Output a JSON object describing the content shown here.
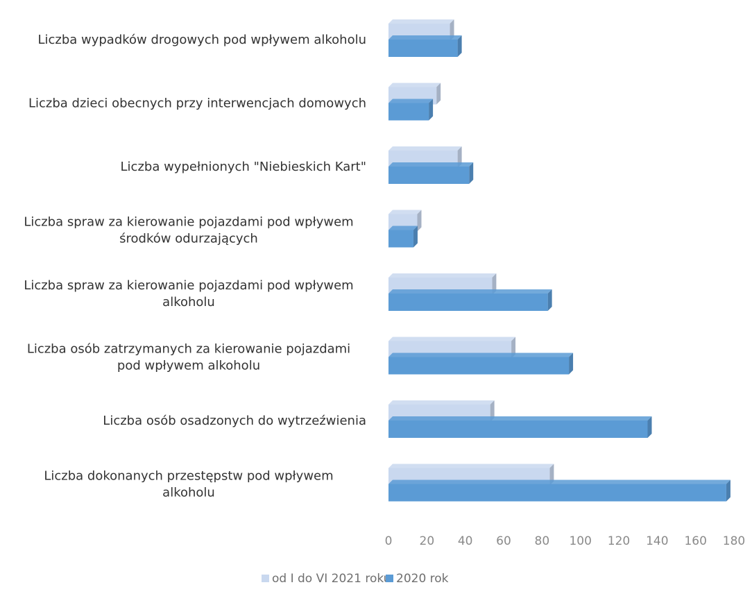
{
  "chart_data": {
    "type": "bar",
    "orientation": "horizontal",
    "categories": [
      [
        "Liczba wypadków drogowych pod wpływem alkoholu"
      ],
      [
        "Liczba dzieci obecnych przy interwencjach domowych"
      ],
      [
        "Liczba wypełnionych \"Niebieskich Kart\""
      ],
      [
        "Liczba spraw za kierowanie pojazdami pod wpływem",
        "środków odurzających"
      ],
      [
        "Liczba spraw za kierowanie pojazdami pod wpływem",
        "alkoholu"
      ],
      [
        "Liczba osób zatrzymanych za kierowanie pojazdami",
        "pod wpływem alkoholu"
      ],
      [
        "Liczba osób osadzonych do wytrzeźwienia"
      ],
      [
        "Liczba dokonanych przestępstw pod wpływem",
        "alkoholu"
      ]
    ],
    "series": [
      {
        "name": "od I do VI 2021 roku",
        "color": "#c9d8ef",
        "values": [
          32,
          25,
          36,
          15,
          54,
          64,
          53,
          84
        ]
      },
      {
        "name": "2020 rok",
        "color": "#5b9bd5",
        "values": [
          36,
          21,
          42,
          13,
          83,
          94,
          135,
          176
        ]
      }
    ],
    "xlim": [
      0,
      180
    ],
    "xticks": [
      "0",
      "20",
      "40",
      "60",
      "80",
      "100",
      "120",
      "140",
      "160",
      "180"
    ],
    "grid": false,
    "legend_position": "bottom",
    "style": "3d"
  }
}
